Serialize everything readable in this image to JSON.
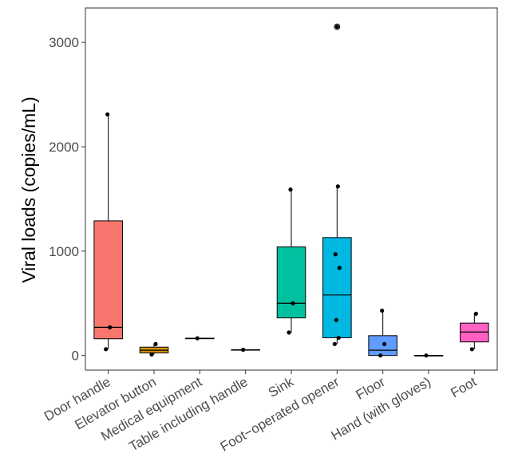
{
  "chart_data": {
    "type": "box",
    "title": "",
    "xlabel": "",
    "ylabel": "Viral loads (copies/mL)",
    "ylim": [
      -140,
      3330
    ],
    "yticks": [
      0,
      1000,
      2000,
      3000
    ],
    "ytick_labels": [
      "0",
      "1000",
      "2000",
      "3000"
    ],
    "grid": false,
    "legend": "none",
    "categories": [
      "Door handle",
      "Elevator button",
      "Medical equipment",
      "Table including handle",
      "Sink",
      "Foot−operated opener",
      "Floor",
      "Hand (with gloves)",
      "Foot"
    ],
    "boxes": [
      {
        "category": "Door handle",
        "color": "#F8766D",
        "whisker_low": 60,
        "q1": 160,
        "median": 270,
        "q3": 1290,
        "whisker_high": 2310,
        "points": [
          60,
          270,
          2310
        ]
      },
      {
        "category": "Elevator button",
        "color": "#D39200",
        "whisker_low": 10,
        "q1": 25,
        "median": 50,
        "q3": 80,
        "whisker_high": 110,
        "points": [
          10,
          110
        ]
      },
      {
        "category": "Medical equipment",
        "color": "#93AA00",
        "whisker_low": 165,
        "q1": 165,
        "median": 165,
        "q3": 165,
        "whisker_high": 165,
        "points": [
          165
        ]
      },
      {
        "category": "Table including handle",
        "color": "#00BA38",
        "whisker_low": 55,
        "q1": 55,
        "median": 55,
        "q3": 55,
        "whisker_high": 55,
        "points": [
          55
        ]
      },
      {
        "category": "Sink",
        "color": "#00C19F",
        "whisker_low": 220,
        "q1": 360,
        "median": 500,
        "q3": 1040,
        "whisker_high": 1590,
        "points": [
          220,
          500,
          1590
        ]
      },
      {
        "category": "Foot−operated opener",
        "color": "#00B9E3",
        "whisker_low": 110,
        "q1": 170,
        "median": 580,
        "q3": 1130,
        "whisker_high": 1620,
        "points": [
          110,
          170,
          340,
          840,
          970,
          1620,
          3150
        ]
      },
      {
        "category": "Floor",
        "color": "#619CFF",
        "whisker_low": 0,
        "q1": 0,
        "median": 50,
        "q3": 190,
        "whisker_high": 430,
        "points": [
          0,
          110,
          430
        ]
      },
      {
        "category": "Hand (with gloves)",
        "color": "#DB72FB",
        "whisker_low": 0,
        "q1": 0,
        "median": 0,
        "q3": 0,
        "whisker_high": 0,
        "points": [
          0
        ]
      },
      {
        "category": "Foot",
        "color": "#FF61C3",
        "whisker_low": 60,
        "q1": 130,
        "median": 225,
        "q3": 310,
        "whisker_high": 400,
        "points": [
          60,
          400
        ]
      }
    ],
    "outliers": [
      {
        "category": "Foot−operated opener",
        "value": 3150
      }
    ]
  }
}
